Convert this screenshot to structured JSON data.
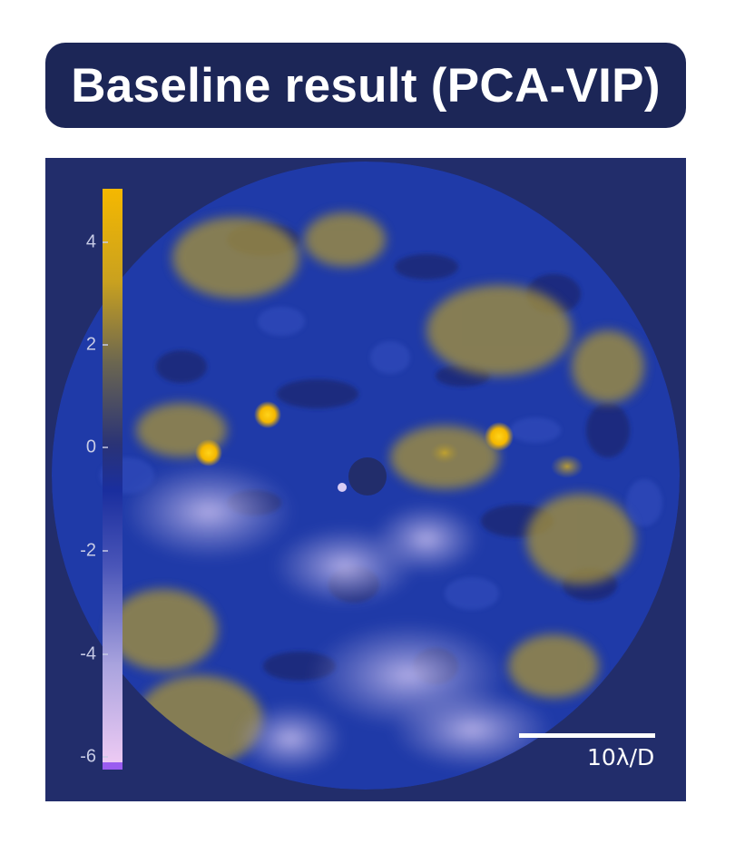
{
  "title": "Baseline result (PCA-VIP)",
  "colorbar": {
    "ticks": [
      "4",
      "2",
      "0",
      "-2",
      "-4",
      "-6"
    ],
    "colors": {
      "high": "#f5b800",
      "mid": "#3a3f7a",
      "zero": "#1a2e9e",
      "low": "#f2cdf5"
    }
  },
  "scalebar": {
    "label": "10λ/D"
  },
  "colors": {
    "background": "#222d6b",
    "banner": "#1c2657",
    "blue_residual": "#1f3aa8",
    "yellow_residual": "#b8a030",
    "lavender_residual": "#8f90d0",
    "point_source": "#ffcc00"
  }
}
